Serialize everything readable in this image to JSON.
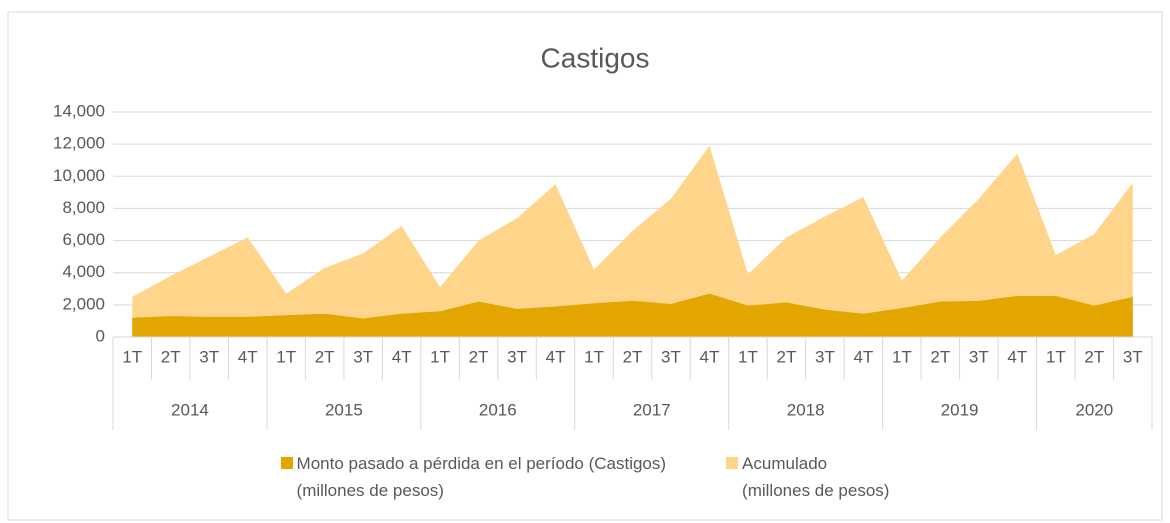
{
  "chart_data": {
    "type": "area",
    "title": "Castigos",
    "groups": [
      {
        "name": "2014",
        "categories": [
          "1T",
          "2T",
          "3T",
          "4T"
        ]
      },
      {
        "name": "2015",
        "categories": [
          "1T",
          "2T",
          "3T",
          "4T"
        ]
      },
      {
        "name": "2016",
        "categories": [
          "1T",
          "2T",
          "3T",
          "4T"
        ]
      },
      {
        "name": "2017",
        "categories": [
          "1T",
          "2T",
          "3T",
          "4T"
        ]
      },
      {
        "name": "2018",
        "categories": [
          "1T",
          "2T",
          "3T",
          "4T"
        ]
      },
      {
        "name": "2019",
        "categories": [
          "1T",
          "2T",
          "3T",
          "4T"
        ]
      },
      {
        "name": "2020",
        "categories": [
          "1T",
          "2T",
          "3T"
        ]
      }
    ],
    "series": [
      {
        "name": "Acumulado\n(millones de pesos)",
        "color": "#ffd58c",
        "values": [
          2500,
          3800,
          5000,
          6200,
          2700,
          4300,
          5200,
          6900,
          3100,
          6000,
          7400,
          9500,
          4200,
          6600,
          8600,
          11900,
          3900,
          6200,
          7500,
          8700,
          3500,
          6200,
          8600,
          11400,
          5100,
          6400,
          9600
        ]
      },
      {
        "name": "Monto pasado a pérdida en el período (Castigos)\n(millones de pesos)",
        "color": "#e3a500",
        "values": [
          1200,
          1300,
          1250,
          1250,
          1350,
          1450,
          1150,
          1450,
          1600,
          2200,
          1750,
          1900,
          2100,
          2250,
          2050,
          2700,
          1950,
          2150,
          1700,
          1450,
          1800,
          2200,
          2250,
          2550,
          2550,
          1950,
          2500
        ]
      }
    ],
    "ylim": [
      0,
      14000
    ],
    "yticks": [
      0,
      {
        "value": 2000,
        "label": "2,000"
      },
      {
        "value": 4000,
        "label": "4,000"
      },
      {
        "value": 6000,
        "label": "6,000"
      },
      {
        "value": 8000,
        "label": "8,000"
      },
      {
        "value": 10000,
        "label": "10,000"
      },
      {
        "value": 12000,
        "label": "12,000"
      },
      {
        "value": 14000,
        "label": "14,000"
      }
    ],
    "grid": true
  }
}
